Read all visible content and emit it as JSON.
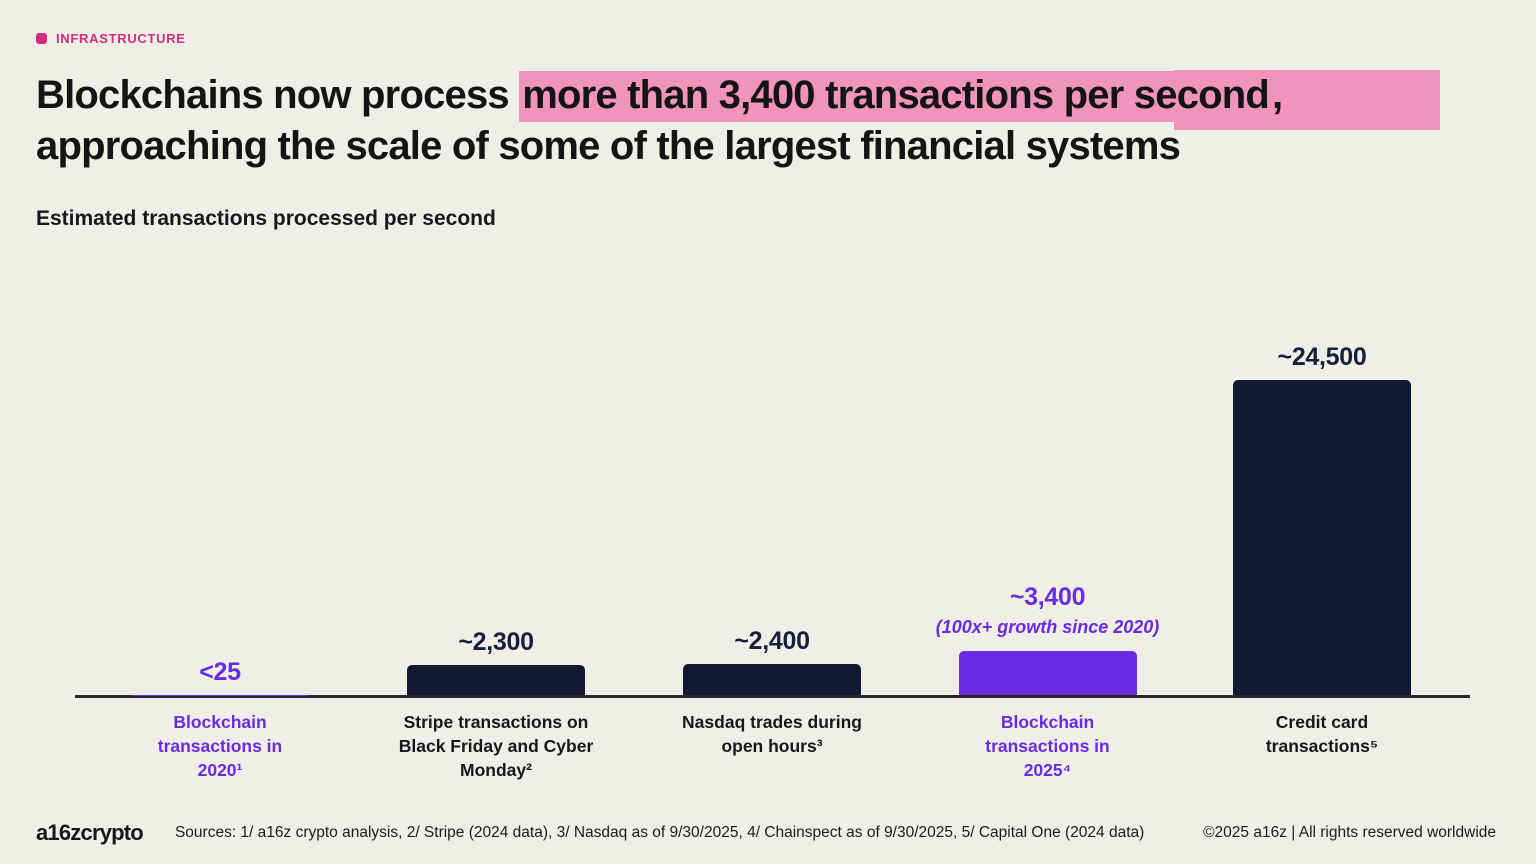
{
  "eyebrow": {
    "label": "INFRASTRUCTURE"
  },
  "title": {
    "pre": "Blockchains now process ",
    "highlight": "more than 3,400 transactions per second",
    "post": ",",
    "line2": "approaching the scale of some of the largest financial systems"
  },
  "subtitle": "Estimated transactions processed per second",
  "chart_data": {
    "type": "bar",
    "title": "Estimated transactions processed per second",
    "categories": [
      "Blockchain transactions in 2020¹",
      "Stripe transactions on Black Friday and Cyber Monday²",
      "Nasdaq trades during open hours³",
      "Blockchain transactions in 2025⁴",
      "Credit card transactions⁵"
    ],
    "values": [
      25,
      2300,
      2400,
      3400,
      24500
    ],
    "value_labels": [
      "<25",
      "~2,300",
      "~2,400",
      "~3,400",
      "~24,500"
    ],
    "annotations": [
      null,
      null,
      null,
      "(100x+ growth since 2020)",
      null
    ],
    "bar_colors": [
      "#6a2be2",
      "#121a33",
      "#121a33",
      "#6a2be2",
      "#121a33"
    ],
    "value_colors": [
      "#6a2be2",
      "#16203d",
      "#16203d",
      "#6a2be2",
      "#16203d"
    ],
    "category_colors": [
      "#6a2be2",
      "#17181c",
      "#17181c",
      "#6a2be2",
      "#17181c"
    ],
    "ylim": [
      0,
      24500
    ],
    "xlabel": "",
    "ylabel": "",
    "grid": false,
    "legend": false
  },
  "footer": {
    "logo": "a16zcrypto",
    "sources": "Sources: 1/ a16z crypto analysis, 2/ Stripe (2024 data), 3/ Nasdaq as of 9/30/2025, 4/ Chainspect as of 9/30/2025, 5/ Capital One (2024 data)",
    "copyright": "©2025 a16z | All rights reserved worldwide"
  },
  "colors": {
    "background": "#f0efe7",
    "navy": "#121a33",
    "purple": "#6a2be2",
    "pink_highlight": "#f194bb",
    "magenta": "#d42d7b"
  }
}
